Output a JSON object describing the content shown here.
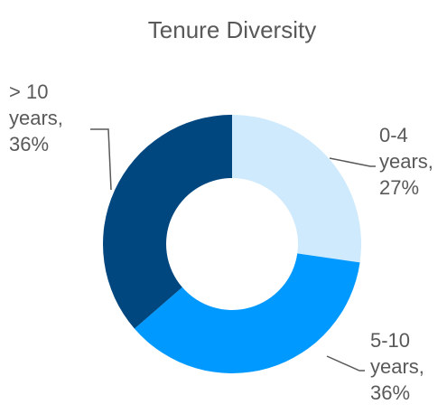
{
  "chart_data": {
    "type": "donut",
    "title": "Tenure Diversity",
    "categories": [
      "0-4 years",
      "5-10 years",
      "> 10 years"
    ],
    "values": [
      27,
      36,
      36
    ],
    "value_labels": [
      "0-4 years, 27%",
      "5-10 years, 36%",
      "> 10 years, 36%"
    ],
    "colors": [
      "#cfeafc",
      "#0099ff",
      "#00467f"
    ]
  }
}
